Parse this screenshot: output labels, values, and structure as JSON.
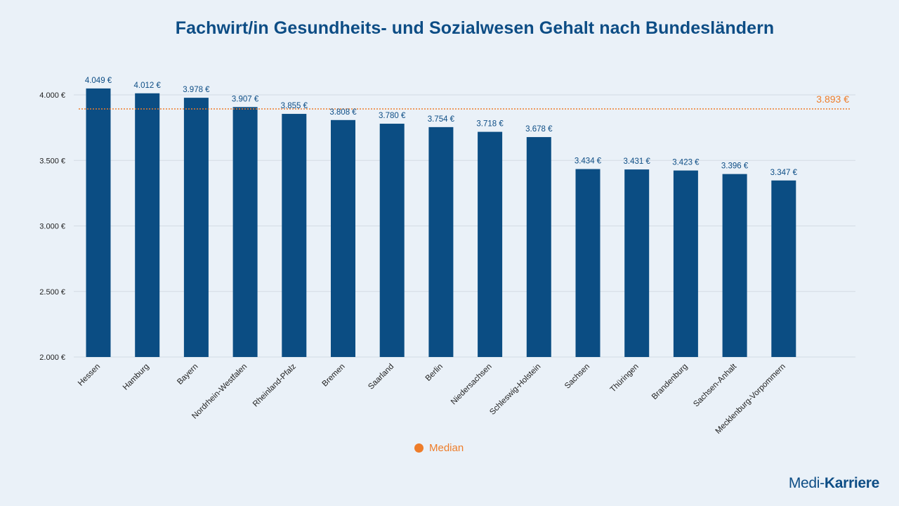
{
  "chart_data": {
    "type": "bar",
    "title": "Fachwirt/in Gesundheits- und Sozialwesen Gehalt nach Bundesländern",
    "categories": [
      "Hessen",
      "Hamburg",
      "Bayern",
      "Nordrhein-Westfalen",
      "Rheinland-Pfalz",
      "Bremen",
      "Saarland",
      "Berlin",
      "Niedersachsen",
      "Schleswig-Holstein",
      "Sachsen",
      "Thüringen",
      "Brandenburg",
      "Sachsen-Anhalt",
      "Mecklenburg-Vorpommern"
    ],
    "values": [
      4049,
      4012,
      3978,
      3907,
      3855,
      3808,
      3780,
      3754,
      3718,
      3678,
      3434,
      3431,
      3423,
      3396,
      3347
    ],
    "value_labels": [
      "4.049 €",
      "4.012 €",
      "3.978 €",
      "3.907 €",
      "3.855 €",
      "3.808 €",
      "3.780 €",
      "3.754 €",
      "3.718 €",
      "3.678 €",
      "3.434 €",
      "3.431 €",
      "3.423 €",
      "3.396 €",
      "3.347 €"
    ],
    "ylim": [
      2000,
      4000
    ],
    "yticks": [
      2000,
      2500,
      3000,
      3500,
      4000
    ],
    "ytick_labels": [
      "2.000 €",
      "2.500 €",
      "3.000 €",
      "3.500 €",
      "4.000 €"
    ],
    "median": 3893,
    "median_label": "3.893 €",
    "legend": [
      "Median"
    ],
    "legend_position": "bottom",
    "grid": true,
    "xlabel": "",
    "ylabel": "",
    "colors": {
      "bar": "#0b4d83",
      "median": "#ee7d2a",
      "grid": "#d3dbe4"
    }
  },
  "brand": {
    "part1": "Medi-",
    "part2": "Karriere"
  }
}
